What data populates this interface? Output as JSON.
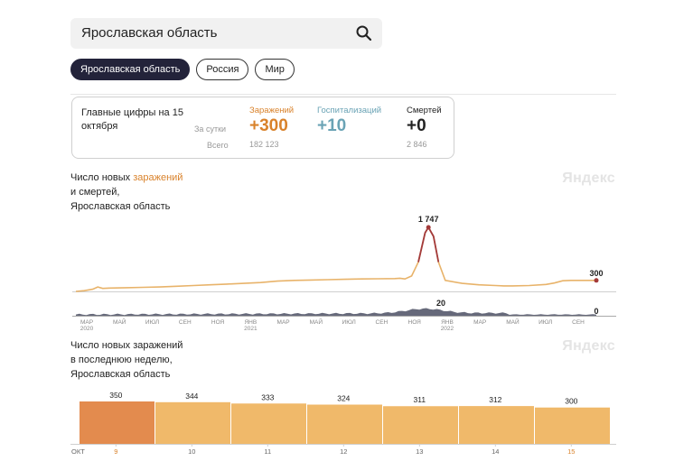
{
  "search": {
    "value": "Ярославская область"
  },
  "tabs": [
    {
      "label": "Ярославская область",
      "active": true
    },
    {
      "label": "Россия",
      "active": false
    },
    {
      "label": "Мир",
      "active": false
    }
  ],
  "summary": {
    "title": "Главные цифры на 15 октября",
    "row_day": "За сутки",
    "row_total": "Всего",
    "infections": {
      "label": "Заражений",
      "day": "+300",
      "total": "182 123",
      "color": "#d9822b"
    },
    "hospital": {
      "label": "Госпитализаций",
      "day": "+10",
      "total": "",
      "color": "#6aa3b5"
    },
    "deaths": {
      "label": "Смертей",
      "day": "+0",
      "total": "2 846",
      "color": "#222222"
    }
  },
  "section1": {
    "title_pre": "Число новых ",
    "title_hl": "заражений",
    "title_l2": "и смертей,",
    "title_l3": "Ярославская область",
    "brand": "Яндекс"
  },
  "section2": {
    "title_l1": "Число новых заражений",
    "title_l2": "в последнюю неделю,",
    "title_l3": "Ярославская область",
    "brand": "Яндекс"
  },
  "colors": {
    "infections_line": "#e8b36a",
    "deaths_area": "#4b4f63",
    "peak_marker": "#a33a3a",
    "bar": "#f0b96a",
    "bar_highlight": "#e38b4e",
    "highlight_text": "#d9822b"
  },
  "chart_data": [
    {
      "type": "line",
      "title": "Число новых заражений и смертей, Ярославская область",
      "x_ticks": [
        {
          "label": "МАР",
          "sub": "2020"
        },
        {
          "label": "МАЙ",
          "sub": ""
        },
        {
          "label": "ИЮЛ",
          "sub": ""
        },
        {
          "label": "СЕН",
          "sub": ""
        },
        {
          "label": "НОЯ",
          "sub": ""
        },
        {
          "label": "ЯНВ",
          "sub": "2021"
        },
        {
          "label": "МАР",
          "sub": ""
        },
        {
          "label": "МАЙ",
          "sub": ""
        },
        {
          "label": "ИЮЛ",
          "sub": ""
        },
        {
          "label": "СЕН",
          "sub": ""
        },
        {
          "label": "НОЯ",
          "sub": ""
        },
        {
          "label": "ЯНВ",
          "sub": "2022"
        },
        {
          "label": "МАР",
          "sub": ""
        },
        {
          "label": "МАЙ",
          "sub": ""
        },
        {
          "label": "ИЮЛ",
          "sub": ""
        },
        {
          "label": "СЕН",
          "sub": ""
        }
      ],
      "series": [
        {
          "name": "заражений",
          "x": [
            0,
            0.5,
            1,
            1.3,
            1.6,
            2,
            3,
            4,
            5,
            6,
            7,
            8,
            9,
            10,
            11,
            12,
            13,
            14,
            15,
            16,
            17,
            18,
            19,
            19.3,
            19.6,
            20,
            20.4,
            20.8,
            21,
            21.3,
            21.6,
            22,
            23,
            24,
            25,
            25.5,
            26,
            27,
            28,
            28.5,
            29,
            29.5,
            30,
            30.5,
            31
          ],
          "values": [
            0,
            20,
            60,
            120,
            80,
            90,
            100,
            110,
            120,
            140,
            160,
            180,
            200,
            220,
            240,
            280,
            300,
            310,
            320,
            330,
            340,
            345,
            350,
            360,
            340,
            420,
            800,
            1600,
            1747,
            1500,
            800,
            300,
            220,
            180,
            160,
            150,
            150,
            160,
            190,
            230,
            290,
            300,
            300,
            300,
            300
          ]
        },
        {
          "name": "смертей",
          "values_label_peak": 20,
          "values_label_last": 0
        }
      ],
      "annotations": {
        "peak": "1 747",
        "last": "300",
        "deaths_peak": "20",
        "deaths_last": "0"
      }
    },
    {
      "type": "bar",
      "title": "Число новых заражений в последнюю неделю, Ярославская область",
      "month_label": "ОКТ",
      "categories": [
        "9",
        "10",
        "11",
        "12",
        "13",
        "14",
        "15"
      ],
      "values": [
        350,
        344,
        333,
        324,
        311,
        312,
        300
      ],
      "value_labels": [
        "350",
        "344",
        "333",
        "324",
        "311",
        "312",
        "300"
      ],
      "ylim": [
        0,
        350
      ]
    }
  ]
}
